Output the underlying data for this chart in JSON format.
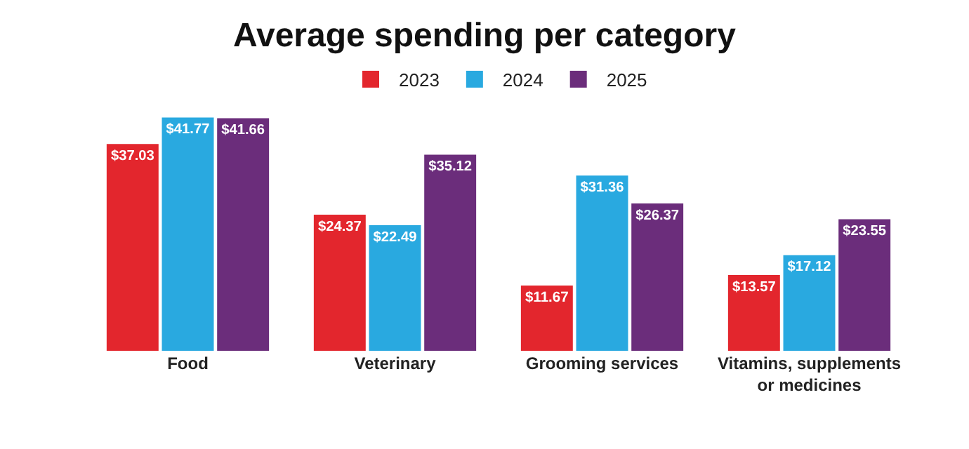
{
  "chart_data": {
    "type": "bar",
    "title": "Average spending per category",
    "categories": [
      "Food",
      "Veterinary",
      "Grooming services",
      "Vitamins, supplements or medicines"
    ],
    "series": [
      {
        "name": "2023",
        "color": "#e3262d",
        "values": [
          37.03,
          24.37,
          11.67,
          13.57
        ],
        "value_labels": [
          "$37.03",
          "$24.37",
          "$11.67",
          "$13.57"
        ]
      },
      {
        "name": "2024",
        "color": "#29a9e0",
        "values": [
          41.77,
          22.49,
          31.36,
          17.12
        ],
        "value_labels": [
          "$41.77",
          "$22.49",
          "$31.36",
          "$17.12"
        ]
      },
      {
        "name": "2025",
        "color": "#6b2d7b",
        "values": [
          41.66,
          35.12,
          26.37,
          23.55
        ],
        "value_labels": [
          "$41.66",
          "$35.12",
          "$26.37",
          "$23.55"
        ]
      }
    ],
    "legend": "top"
  }
}
